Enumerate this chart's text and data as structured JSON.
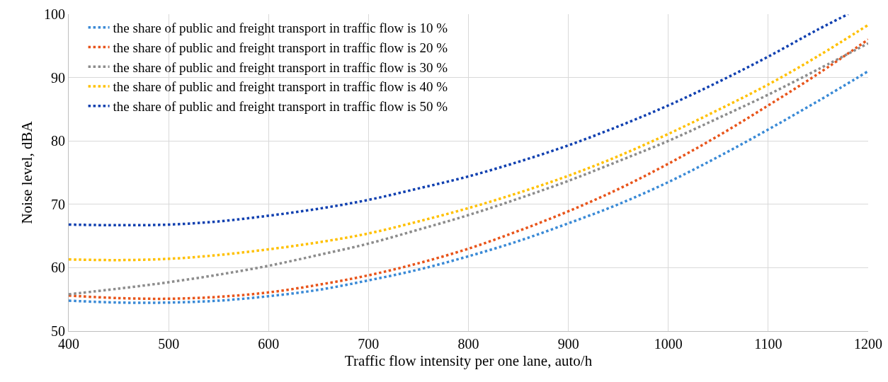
{
  "chart_data": {
    "type": "line",
    "xlabel": "Traffic flow intensity per one lane, auto/h",
    "ylabel": "Noise level, dBA",
    "x": [
      400,
      450,
      500,
      550,
      600,
      650,
      700,
      750,
      800,
      850,
      900,
      950,
      1000,
      1050,
      1100,
      1150,
      1200
    ],
    "series": [
      {
        "name": "the share of public and freight transport in traffic flow is 10 %",
        "color": "#3a8ad6",
        "values": [
          54.8,
          54.5,
          54.5,
          54.8,
          55.5,
          56.5,
          58,
          59.7,
          61.8,
          64.2,
          67,
          70,
          73.5,
          77.5,
          81.8,
          86.3,
          91
        ]
      },
      {
        "name": "the share of public and freight transport in traffic flow is 20 %",
        "color": "#e8541a",
        "values": [
          55.6,
          55.2,
          55.1,
          55.4,
          56.1,
          57.3,
          58.8,
          60.7,
          63,
          65.8,
          68.9,
          72.4,
          76.4,
          80.8,
          85.6,
          90.6,
          96
        ]
      },
      {
        "name": "the share of public and freight transport in traffic flow is 30 %",
        "color": "#8c8c8c",
        "values": [
          55.8,
          56.7,
          57.7,
          58.9,
          60.3,
          62,
          63.8,
          66,
          68.3,
          70.9,
          73.7,
          76.8,
          80,
          83.6,
          87.3,
          91.3,
          95.4
        ]
      },
      {
        "name": "the share of public and freight transport in traffic flow is 40 %",
        "color": "#ffc000",
        "values": [
          61.3,
          61.2,
          61.4,
          62,
          62.9,
          64,
          65.4,
          67.3,
          69.4,
          71.8,
          74.5,
          77.6,
          81.1,
          84.9,
          88.9,
          93.4,
          98.3
        ]
      },
      {
        "name": "the share of public and freight transport in traffic flow is 50 %",
        "color": "#1040b0",
        "x": [
          400,
          450,
          500,
          550,
          600,
          650,
          700,
          750,
          800,
          850,
          900,
          950,
          1000,
          1050,
          1100,
          1150,
          1180
        ],
        "values": [
          66.8,
          66.7,
          66.8,
          67.3,
          68.2,
          69.3,
          70.7,
          72.5,
          74.4,
          76.7,
          79.3,
          82.3,
          85.6,
          89.3,
          93.3,
          97.6,
          100
        ]
      }
    ],
    "xlim": [
      400,
      1200
    ],
    "xticks": [
      400,
      500,
      600,
      700,
      800,
      900,
      1000,
      1100,
      1200
    ],
    "ylim": [
      50,
      100
    ],
    "yticks": [
      50,
      60,
      70,
      80,
      90,
      100
    ],
    "grid": true,
    "legend": "top left",
    "marker": "none",
    "line_style": "dotted"
  }
}
